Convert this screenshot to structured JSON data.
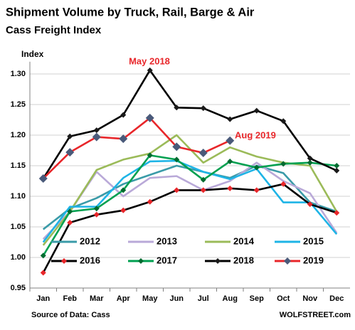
{
  "chart_data": {
    "type": "line",
    "title": "Shipment Volume by Truck, Rail, Barge & Air",
    "subtitle": "Cass Freight Index",
    "y_label": "Index",
    "source": "Source of Data: Cass",
    "credit": "WOLFSTREET.com",
    "annotations": [
      {
        "text": "May 2018",
        "color": "#e8262a"
      },
      {
        "text": "Aug 2019",
        "color": "#e8262a"
      }
    ],
    "categories": [
      "Jan",
      "Feb",
      "Mar",
      "Apr",
      "May",
      "Jun",
      "Jul",
      "Aug",
      "Sep",
      "Oct",
      "Nov",
      "Dec"
    ],
    "ylim": [
      0.95,
      1.32
    ],
    "yticks": [
      {
        "value": 0.95,
        "label": "0.95"
      },
      {
        "value": 1.0,
        "label": "1.00"
      },
      {
        "value": 1.05,
        "label": "1.05"
      },
      {
        "value": 1.1,
        "label": "1.10"
      },
      {
        "value": 1.15,
        "label": "1.15"
      },
      {
        "value": 1.2,
        "label": "1.20"
      },
      {
        "value": 1.25,
        "label": "1.25"
      },
      {
        "value": 1.3,
        "label": "1.30"
      }
    ],
    "grid": true,
    "series": [
      {
        "name": "2012",
        "color": "#3a9ba8",
        "values": [
          1.046,
          1.08,
          1.097,
          1.12,
          1.135,
          1.15,
          1.14,
          1.13,
          1.15,
          1.138,
          1.09,
          1.075
        ]
      },
      {
        "name": "2013",
        "color": "#b9a9d8",
        "values": [
          1.03,
          1.075,
          1.14,
          1.1,
          1.13,
          1.133,
          1.11,
          1.125,
          1.155,
          1.125,
          1.105,
          1.04
        ]
      },
      {
        "name": "2014",
        "color": "#9bbb59",
        "values": [
          1.02,
          1.075,
          1.143,
          1.16,
          1.17,
          1.2,
          1.155,
          1.18,
          1.165,
          1.155,
          1.15,
          1.075
        ]
      },
      {
        "name": "2015",
        "color": "#1eb4e6",
        "values": [
          1.025,
          1.083,
          1.083,
          1.13,
          1.157,
          1.158,
          1.14,
          1.128,
          1.145,
          1.09,
          1.09,
          1.038
        ]
      },
      {
        "name": "2016",
        "color": "#000000",
        "marker_color": "#e8262a",
        "values": [
          0.975,
          1.057,
          1.07,
          1.077,
          1.091,
          1.11,
          1.11,
          1.113,
          1.11,
          1.12,
          1.087,
          1.073
        ]
      },
      {
        "name": "2017",
        "color": "#00a050",
        "marker_color": "#006b30",
        "values": [
          1.003,
          1.075,
          1.08,
          1.11,
          1.167,
          1.16,
          1.127,
          1.157,
          1.147,
          1.153,
          1.155,
          1.15
        ]
      },
      {
        "name": "2018",
        "color": "#000000",
        "marker_color": "#1a1a1a",
        "values": [
          1.129,
          1.198,
          1.208,
          1.233,
          1.306,
          1.245,
          1.244,
          1.226,
          1.24,
          1.223,
          1.162,
          1.142
        ]
      },
      {
        "name": "2019",
        "color": "#e8262a",
        "marker_color": "#4a5a7a",
        "values": [
          1.129,
          1.172,
          1.197,
          1.194,
          1.228,
          1.181,
          1.171,
          1.191,
          null,
          null,
          null,
          null
        ]
      }
    ]
  }
}
